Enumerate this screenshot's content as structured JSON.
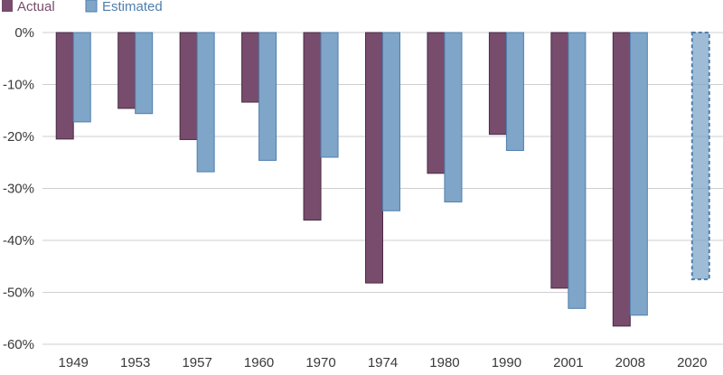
{
  "chart_data": {
    "type": "bar",
    "categories": [
      "1949",
      "1953",
      "1957",
      "1960",
      "1970",
      "1974",
      "1980",
      "1990",
      "2001",
      "2008",
      "2020"
    ],
    "series": [
      {
        "name": "Actual",
        "color": "#774c6d",
        "stroke": "#4a2c44",
        "values": [
          -20.5,
          -14.6,
          -20.6,
          -13.4,
          -36.1,
          -48.2,
          -27.1,
          -19.6,
          -49.2,
          -56.5,
          null
        ]
      },
      {
        "name": "Estimated",
        "color": "#7fa5c8",
        "stroke": "#4f7fae",
        "values": [
          -17.2,
          -15.6,
          -26.8,
          -24.6,
          -24.0,
          -34.3,
          -32.6,
          -22.7,
          -53.1,
          -54.4,
          -47.5
        ],
        "dashed_categories": [
          "2020"
        ]
      }
    ],
    "ylim": [
      -60,
      0
    ],
    "yticks": [
      0,
      -10,
      -20,
      -30,
      -40,
      -50,
      -60
    ],
    "ytick_labels": [
      "0%",
      "-10%",
      "-20%",
      "-30%",
      "-40%",
      "-50%",
      "-60%"
    ],
    "grid": true,
    "legend_position": "top-left"
  },
  "legend": {
    "actual_label": "Actual",
    "estimated_label": "Estimated",
    "actual_color": "#774c6d",
    "estimated_color": "#7fa5c8"
  }
}
